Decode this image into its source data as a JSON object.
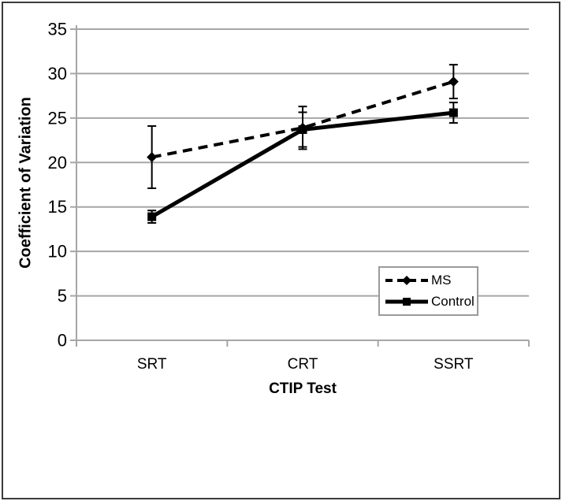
{
  "chart_data": {
    "type": "line",
    "title": "",
    "xlabel": "CTIP Test",
    "ylabel": "Coefficient of Variation",
    "categories": [
      "SRT",
      "CRT",
      "SSRT"
    ],
    "series": [
      {
        "name": "MS",
        "values": [
          20.6,
          23.9,
          29.1
        ],
        "errors": [
          3.5,
          2.4,
          1.9
        ],
        "line_style": "dashed",
        "marker": "diamond",
        "color": "#000000"
      },
      {
        "name": "Control",
        "values": [
          13.9,
          23.7,
          25.6
        ],
        "errors": [
          0.7,
          1.95,
          1.15
        ],
        "line_style": "solid",
        "marker": "square",
        "color": "#000000"
      }
    ],
    "ylim": [
      0,
      35
    ],
    "yticks": [
      0,
      5,
      10,
      15,
      20,
      25,
      30,
      35
    ],
    "grid": "horizontal",
    "legend_position": "inside-bottom-right",
    "axis_color": "#a6a6a6",
    "plot_background": "#ffffff",
    "frame_color": "#3a3a3a"
  }
}
